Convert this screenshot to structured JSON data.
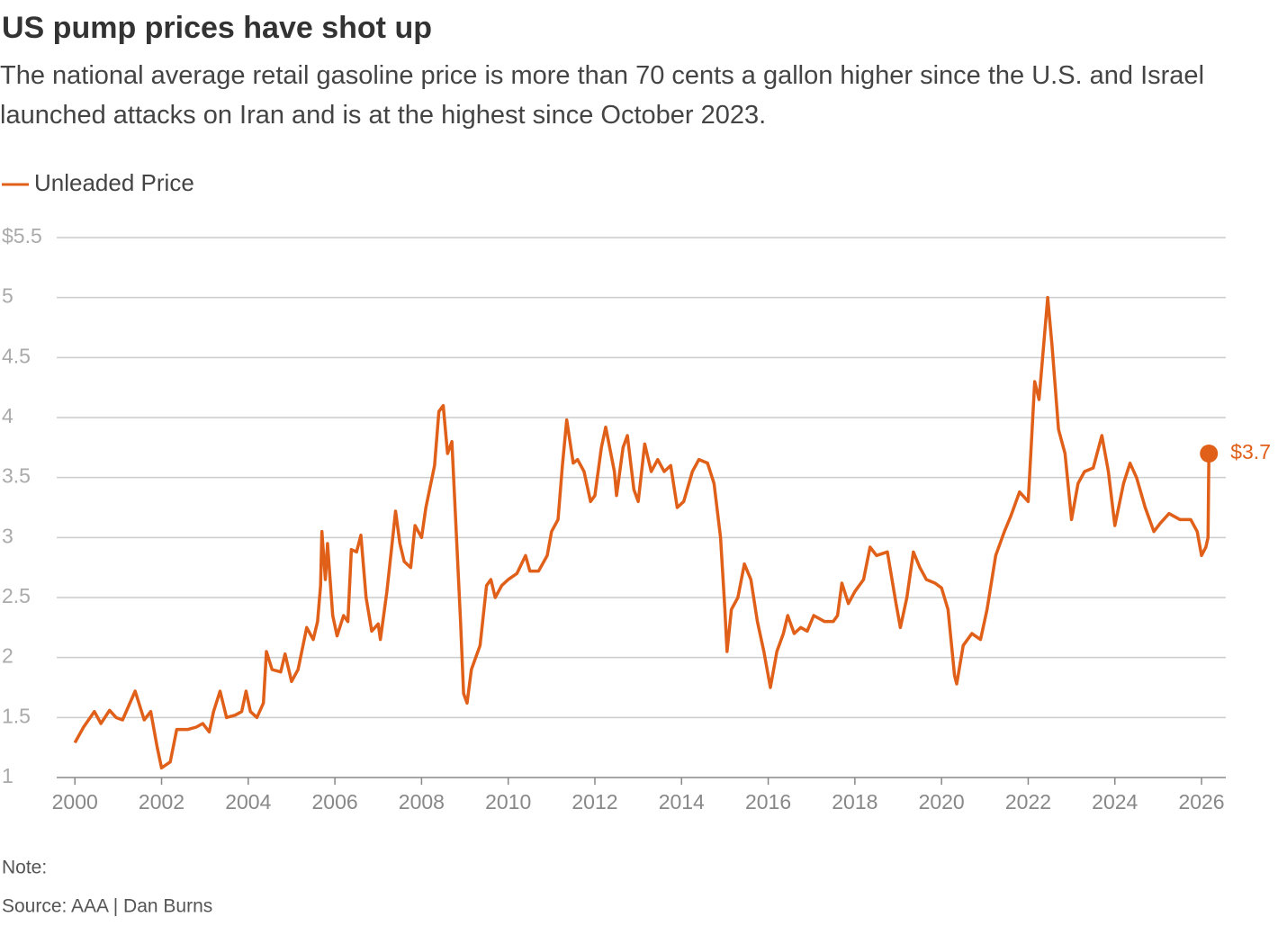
{
  "chart_data": {
    "type": "line",
    "title": "US pump prices have shot up",
    "subtitle": "The national average retail gasoline price is more than 70 cents a gallon higher since the U.S. and Israel launched attacks on Iran and is at the highest since October 2023.",
    "note": "Note:",
    "source": "Source: AAA | Dan Burns",
    "x": [
      2000.0,
      2000.2,
      2000.45,
      2000.6,
      2000.8,
      2000.95,
      2001.1,
      2001.39,
      2001.6,
      2001.75,
      2001.9,
      2002.0,
      2002.2,
      2002.35,
      2002.6,
      2002.8,
      2002.95,
      2003.1,
      2003.2,
      2003.35,
      2003.5,
      2003.7,
      2003.85,
      2003.95,
      2004.05,
      2004.2,
      2004.35,
      2004.42,
      2004.55,
      2004.75,
      2004.85,
      2005.0,
      2005.15,
      2005.35,
      2005.5,
      2005.6,
      2005.67,
      2005.7,
      2005.78,
      2005.83,
      2005.95,
      2006.05,
      2006.2,
      2006.3,
      2006.38,
      2006.5,
      2006.6,
      2006.72,
      2006.85,
      2007.0,
      2007.05,
      2007.2,
      2007.35,
      2007.4,
      2007.5,
      2007.6,
      2007.75,
      2007.85,
      2008.0,
      2008.1,
      2008.3,
      2008.4,
      2008.5,
      2008.6,
      2008.7,
      2008.8,
      2008.9,
      2008.97,
      2009.05,
      2009.15,
      2009.35,
      2009.5,
      2009.6,
      2009.7,
      2009.85,
      2010.0,
      2010.2,
      2010.4,
      2010.5,
      2010.7,
      2010.9,
      2011.0,
      2011.15,
      2011.25,
      2011.35,
      2011.5,
      2011.6,
      2011.75,
      2011.9,
      2012.0,
      2012.15,
      2012.25,
      2012.45,
      2012.5,
      2012.65,
      2012.75,
      2012.9,
      2013.0,
      2013.15,
      2013.3,
      2013.45,
      2013.6,
      2013.75,
      2013.9,
      2014.05,
      2014.25,
      2014.4,
      2014.6,
      2014.75,
      2014.9,
      2015.0,
      2015.05,
      2015.15,
      2015.3,
      2015.45,
      2015.6,
      2015.75,
      2015.9,
      2016.05,
      2016.2,
      2016.35,
      2016.45,
      2016.6,
      2016.75,
      2016.9,
      2017.05,
      2017.3,
      2017.5,
      2017.6,
      2017.7,
      2017.85,
      2018.0,
      2018.2,
      2018.35,
      2018.5,
      2018.75,
      2018.95,
      2019.05,
      2019.2,
      2019.35,
      2019.5,
      2019.65,
      2019.85,
      2020.0,
      2020.15,
      2020.3,
      2020.35,
      2020.5,
      2020.7,
      2020.9,
      2021.05,
      2021.25,
      2021.45,
      2021.6,
      2021.8,
      2022.0,
      2022.15,
      2022.25,
      2022.45,
      2022.55,
      2022.7,
      2022.85,
      2023.0,
      2023.15,
      2023.3,
      2023.5,
      2023.7,
      2023.85,
      2024.0,
      2024.2,
      2024.35,
      2024.5,
      2024.7,
      2024.9,
      2025.05,
      2025.25,
      2025.5,
      2025.75,
      2025.9,
      2026.0,
      2026.1,
      2026.15,
      2026.17
    ],
    "series": [
      {
        "name": "Unleaded Price",
        "color": "#e0601a",
        "values": [
          1.29,
          1.42,
          1.55,
          1.45,
          1.56,
          1.5,
          1.48,
          1.72,
          1.48,
          1.55,
          1.25,
          1.08,
          1.13,
          1.4,
          1.4,
          1.42,
          1.45,
          1.38,
          1.55,
          1.72,
          1.5,
          1.52,
          1.55,
          1.72,
          1.55,
          1.5,
          1.62,
          2.05,
          1.9,
          1.88,
          2.03,
          1.8,
          1.9,
          2.25,
          2.15,
          2.3,
          2.6,
          3.05,
          2.65,
          2.95,
          2.35,
          2.18,
          2.35,
          2.3,
          2.9,
          2.88,
          3.02,
          2.5,
          2.22,
          2.28,
          2.15,
          2.55,
          3.05,
          3.22,
          2.95,
          2.8,
          2.75,
          3.1,
          3.0,
          3.25,
          3.6,
          4.05,
          4.1,
          3.7,
          3.8,
          3.05,
          2.3,
          1.7,
          1.62,
          1.9,
          2.1,
          2.6,
          2.65,
          2.5,
          2.6,
          2.65,
          2.7,
          2.85,
          2.72,
          2.72,
          2.85,
          3.05,
          3.15,
          3.6,
          3.98,
          3.62,
          3.65,
          3.55,
          3.3,
          3.35,
          3.75,
          3.92,
          3.55,
          3.35,
          3.75,
          3.85,
          3.4,
          3.3,
          3.78,
          3.55,
          3.65,
          3.55,
          3.6,
          3.25,
          3.3,
          3.55,
          3.65,
          3.62,
          3.45,
          3.0,
          2.4,
          2.05,
          2.4,
          2.5,
          2.78,
          2.65,
          2.3,
          2.05,
          1.75,
          2.05,
          2.2,
          2.35,
          2.2,
          2.25,
          2.22,
          2.35,
          2.3,
          2.3,
          2.35,
          2.62,
          2.45,
          2.55,
          2.65,
          2.92,
          2.85,
          2.88,
          2.45,
          2.25,
          2.5,
          2.88,
          2.75,
          2.65,
          2.62,
          2.58,
          2.4,
          1.85,
          1.78,
          2.1,
          2.2,
          2.15,
          2.4,
          2.85,
          3.05,
          3.18,
          3.38,
          3.3,
          4.3,
          4.15,
          5.0,
          4.6,
          3.9,
          3.7,
          3.15,
          3.45,
          3.55,
          3.58,
          3.85,
          3.55,
          3.1,
          3.45,
          3.62,
          3.5,
          3.25,
          3.05,
          3.12,
          3.2,
          3.15,
          3.15,
          3.05,
          2.85,
          2.92,
          3.0,
          3.7
        ]
      }
    ],
    "end_label": {
      "x": 2026.17,
      "y": 3.7,
      "label": "$3.7"
    },
    "xlim": [
      1999.58,
      2026.56
    ],
    "xticks": [
      2000,
      2002,
      2004,
      2006,
      2008,
      2010,
      2012,
      2014,
      2016,
      2018,
      2020,
      2022,
      2024,
      2026
    ],
    "ylim": [
      1,
      5.5
    ],
    "yticks": [
      1,
      1.5,
      2,
      2.5,
      3,
      3.5,
      4,
      4.5,
      5,
      {
        "value": 5.5,
        "label": "$5.5"
      }
    ],
    "grid": true
  }
}
